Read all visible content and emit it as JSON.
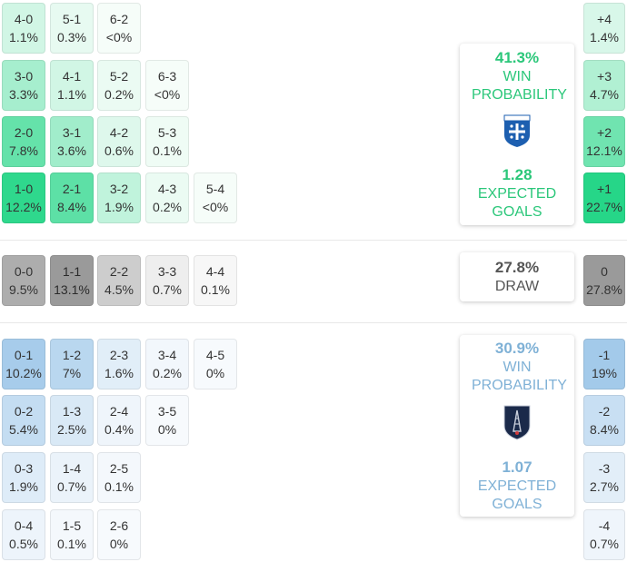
{
  "colors": {
    "home_accent": "#2bc77a",
    "away_accent": "#7fb1d6",
    "draw_text": "#555555"
  },
  "chart_data": {
    "type": "heatmap",
    "home_wins": [
      [
        {
          "s": "4-0",
          "p": "1.1%",
          "v": 1.1
        },
        {
          "s": "5-1",
          "p": "0.3%",
          "v": 0.3
        },
        {
          "s": "6-2",
          "p": "<0%",
          "v": 0
        }
      ],
      [
        {
          "s": "3-0",
          "p": "3.3%",
          "v": 3.3
        },
        {
          "s": "4-1",
          "p": "1.1%",
          "v": 1.1
        },
        {
          "s": "5-2",
          "p": "0.2%",
          "v": 0.2
        },
        {
          "s": "6-3",
          "p": "<0%",
          "v": 0
        }
      ],
      [
        {
          "s": "2-0",
          "p": "7.8%",
          "v": 7.8
        },
        {
          "s": "3-1",
          "p": "3.6%",
          "v": 3.6
        },
        {
          "s": "4-2",
          "p": "0.6%",
          "v": 0.6
        },
        {
          "s": "5-3",
          "p": "0.1%",
          "v": 0.1
        }
      ],
      [
        {
          "s": "1-0",
          "p": "12.2%",
          "v": 12.2
        },
        {
          "s": "2-1",
          "p": "8.4%",
          "v": 8.4
        },
        {
          "s": "3-2",
          "p": "1.9%",
          "v": 1.9
        },
        {
          "s": "4-3",
          "p": "0.2%",
          "v": 0.2
        },
        {
          "s": "5-4",
          "p": "<0%",
          "v": 0
        }
      ]
    ],
    "draws": [
      [
        {
          "s": "0-0",
          "p": "9.5%",
          "v": 9.5
        },
        {
          "s": "1-1",
          "p": "13.1%",
          "v": 13.1
        },
        {
          "s": "2-2",
          "p": "4.5%",
          "v": 4.5
        },
        {
          "s": "3-3",
          "p": "0.7%",
          "v": 0.7
        },
        {
          "s": "4-4",
          "p": "0.1%",
          "v": 0.1
        }
      ]
    ],
    "away_wins": [
      [
        {
          "s": "0-1",
          "p": "10.2%",
          "v": 10.2
        },
        {
          "s": "1-2",
          "p": "7%",
          "v": 7
        },
        {
          "s": "2-3",
          "p": "1.6%",
          "v": 1.6
        },
        {
          "s": "3-4",
          "p": "0.2%",
          "v": 0.2
        },
        {
          "s": "4-5",
          "p": "0%",
          "v": 0
        }
      ],
      [
        {
          "s": "0-2",
          "p": "5.4%",
          "v": 5.4
        },
        {
          "s": "1-3",
          "p": "2.5%",
          "v": 2.5
        },
        {
          "s": "2-4",
          "p": "0.4%",
          "v": 0.4
        },
        {
          "s": "3-5",
          "p": "0%",
          "v": 0
        }
      ],
      [
        {
          "s": "0-3",
          "p": "1.9%",
          "v": 1.9
        },
        {
          "s": "1-4",
          "p": "0.7%",
          "v": 0.7
        },
        {
          "s": "2-5",
          "p": "0.1%",
          "v": 0.1
        }
      ],
      [
        {
          "s": "0-4",
          "p": "0.5%",
          "v": 0.5
        },
        {
          "s": "1-5",
          "p": "0.1%",
          "v": 0.1
        },
        {
          "s": "2-6",
          "p": "0%",
          "v": 0
        }
      ]
    ],
    "margins": {
      "home": [
        {
          "m": "+4",
          "p": "1.4%",
          "v": 1.4
        },
        {
          "m": "+3",
          "p": "4.7%",
          "v": 4.7
        },
        {
          "m": "+2",
          "p": "12.1%",
          "v": 12.1
        },
        {
          "m": "+1",
          "p": "22.7%",
          "v": 22.7
        }
      ],
      "draw": [
        {
          "m": "0",
          "p": "27.8%",
          "v": 27.8
        }
      ],
      "away": [
        {
          "m": "-1",
          "p": "19%",
          "v": 19
        },
        {
          "m": "-2",
          "p": "8.4%",
          "v": 8.4
        },
        {
          "m": "-3",
          "p": "2.7%",
          "v": 2.7
        },
        {
          "m": "-4",
          "p": "0.7%",
          "v": 0.7
        }
      ]
    }
  },
  "home_card": {
    "win_pct": "41.3%",
    "win_label": "WIN PROBABILITY",
    "crest_text": "A.J.AUXERRE",
    "xg": "1.28",
    "xg_label": "EXPECTED GOALS"
  },
  "draw_card": {
    "pct": "27.8%",
    "label": "DRAW"
  },
  "away_card": {
    "win_pct": "30.9%",
    "win_label": "WIN PROBABILITY",
    "crest_text": "PARIS FC",
    "xg": "1.07",
    "xg_label": "EXPECTED GOALS"
  }
}
